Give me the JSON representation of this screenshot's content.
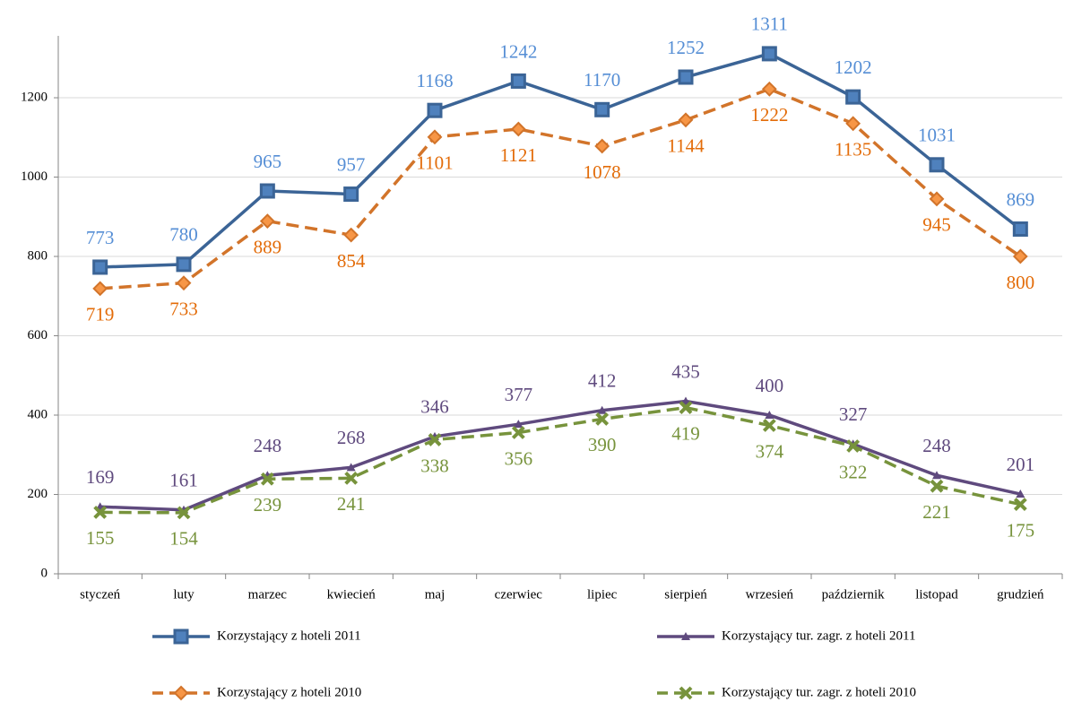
{
  "chart_data": {
    "type": "line",
    "categories": [
      "styczeń",
      "luty",
      "marzec",
      "kwiecień",
      "maj",
      "czerwiec",
      "lipiec",
      "sierpień",
      "wrzesień",
      "październik",
      "listopad",
      "grudzień"
    ],
    "series": [
      {
        "name": "Korzystający z hoteli 2011",
        "color": "#3b6496",
        "marker": "square",
        "dashed": false,
        "label_color": "#558ed5",
        "values": [
          773,
          780,
          965,
          957,
          1168,
          1242,
          1170,
          1252,
          1311,
          1202,
          1031,
          869
        ]
      },
      {
        "name": "Korzystający z hoteli 2010",
        "color": "#d2742a",
        "marker": "diamond",
        "dashed": true,
        "label_color": "#e36c09",
        "values": [
          719,
          733,
          889,
          854,
          1101,
          1121,
          1078,
          1144,
          1222,
          1135,
          945,
          800
        ]
      },
      {
        "name": "Korzystający tur. zagr. z hoteli 2011",
        "color": "#5f4a7e",
        "marker": "triangle",
        "dashed": false,
        "label_color": "#5f4a7e",
        "values": [
          169,
          161,
          248,
          268,
          346,
          377,
          412,
          435,
          400,
          327,
          248,
          201
        ]
      },
      {
        "name": "Korzystający tur. zagr. z hoteli 2010",
        "color": "#77933c",
        "marker": "x",
        "dashed": true,
        "label_color": "#77933c",
        "values": [
          155,
          154,
          239,
          241,
          338,
          356,
          390,
          419,
          374,
          322,
          221,
          175
        ]
      }
    ],
    "ylim": [
      0,
      1356
    ],
    "yticks": [
      0,
      200,
      400,
      600,
      800,
      1000,
      1200
    ],
    "grid": true
  }
}
